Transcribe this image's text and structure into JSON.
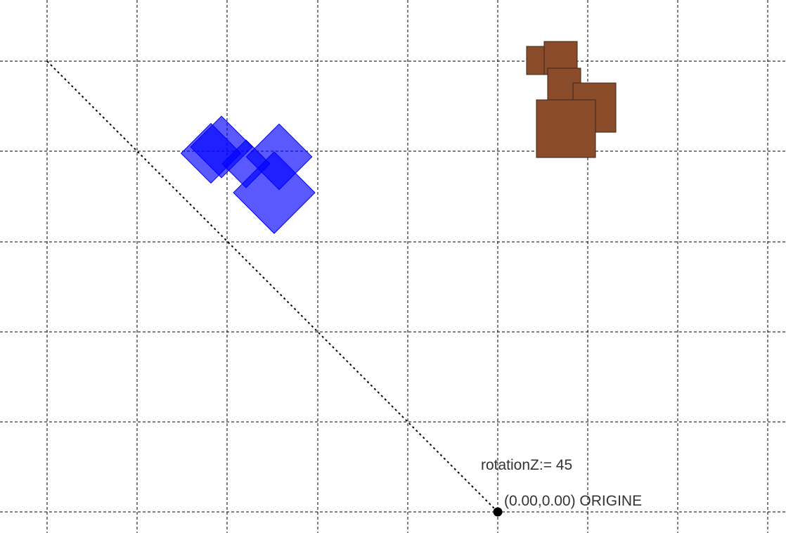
{
  "labels": {
    "rotation": "rotationZ:= 45",
    "origin_coords": "(0.00,0.00)",
    "origin_name": "ORIGINE"
  },
  "colors": {
    "grid_line": "#000000",
    "axis_line": "#000000",
    "blue_square_fill": "#0000ff",
    "blue_square_opacity": 0.65,
    "brown_square_fill": "#8b4c2c",
    "brown_square_stroke": "#3a2418",
    "origin_point": "#000000",
    "label_text": "#333333"
  },
  "grid": {
    "style": "dashed",
    "columns": 9,
    "rows": 6
  },
  "shapes": {
    "blue_group": {
      "count": 5,
      "rotation_deg": 45,
      "fill": "blue"
    },
    "brown_group": {
      "count": 5,
      "rotation_deg": 0,
      "fill": "brown"
    }
  },
  "rotation_z": 45
}
